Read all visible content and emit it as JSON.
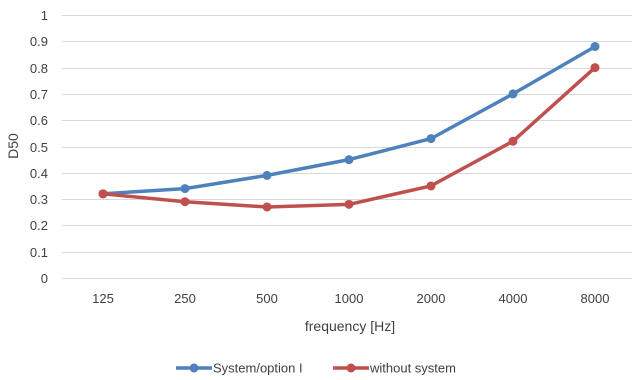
{
  "chart_data": {
    "type": "line",
    "title": "",
    "xlabel": "frequency [Hz]",
    "ylabel": "D50",
    "categories": [
      "125",
      "250",
      "500",
      "1000",
      "2000",
      "4000",
      "8000"
    ],
    "ylim": [
      0,
      1
    ],
    "yticks": [
      "0",
      "0.1",
      "0.2",
      "0.3",
      "0.4",
      "0.5",
      "0.6",
      "0.7",
      "0.8",
      "0.9",
      "1"
    ],
    "grid": true,
    "legend_position": "bottom",
    "series": [
      {
        "name": "System/option I",
        "color": "#4f81bd",
        "values": [
          0.32,
          0.34,
          0.39,
          0.45,
          0.53,
          0.7,
          0.88
        ]
      },
      {
        "name": "without system",
        "color": "#c0504d",
        "values": [
          0.32,
          0.29,
          0.27,
          0.28,
          0.35,
          0.52,
          0.8
        ]
      }
    ]
  }
}
